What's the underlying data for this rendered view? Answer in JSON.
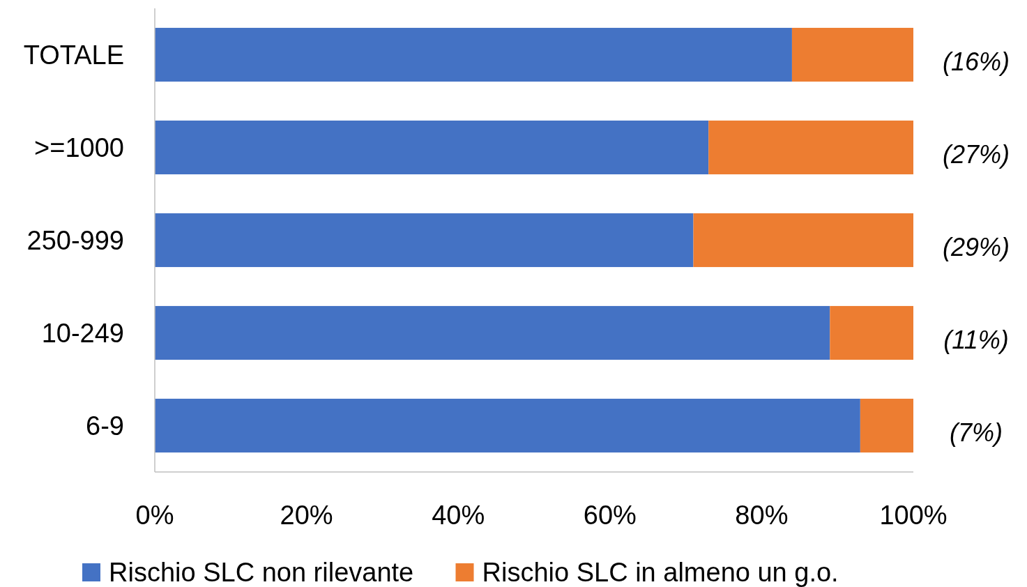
{
  "chart_data": {
    "type": "bar",
    "orientation": "horizontal",
    "stacked": true,
    "categories": [
      "TOTALE",
      ">=1000",
      "250-999",
      "10-249",
      "6-9"
    ],
    "series": [
      {
        "name": "Rischio SLC non rilevante",
        "color": "#4472c4",
        "values": [
          84,
          73,
          71,
          89,
          93
        ]
      },
      {
        "name": "Rischio SLC in almeno un g.o.",
        "color": "#ed7d31",
        "values": [
          16,
          27,
          29,
          11,
          7
        ],
        "value_labels": [
          "(16%)",
          "(27%)",
          "(29%)",
          "(11%)",
          "(7%)"
        ]
      }
    ],
    "xlim": [
      0,
      100
    ],
    "xticks": [
      {
        "value": 0,
        "label": "0%"
      },
      {
        "value": 20,
        "label": "20%"
      },
      {
        "value": 40,
        "label": "40%"
      },
      {
        "value": 60,
        "label": "60%"
      },
      {
        "value": 80,
        "label": "80%"
      },
      {
        "value": 100,
        "label": "100%"
      }
    ],
    "grid": false,
    "legend": "bottom"
  }
}
